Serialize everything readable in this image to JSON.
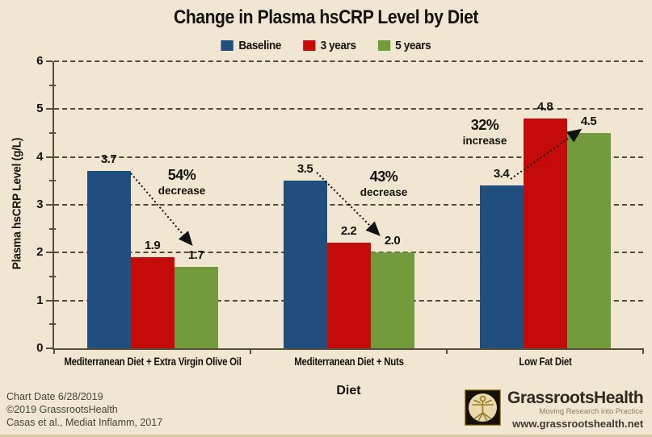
{
  "page": {
    "background": "#F0E6D1"
  },
  "chart_data": {
    "type": "bar",
    "title": "Change in Plasma hsCRP Level by Diet",
    "xlabel": "Diet",
    "ylabel": "Plasma hsCRP Level (g/L)",
    "ylim": [
      0,
      6
    ],
    "ytick_step": 1,
    "grid": "horizontal-dashed",
    "legend_position": "top-center",
    "categories": [
      "Mediterranean Diet + Extra Virgin Olive Oil",
      "Mediterranean Diet + Nuts",
      "Low Fat Diet"
    ],
    "series": [
      {
        "name": "Baseline",
        "color": "#204E7F",
        "values": [
          3.7,
          3.5,
          3.4
        ]
      },
      {
        "name": "3 years",
        "color": "#C50A0A",
        "values": [
          1.9,
          2.2,
          4.8
        ]
      },
      {
        "name": "5 years",
        "color": "#729B3B",
        "values": [
          1.7,
          2.0,
          4.5
        ]
      }
    ],
    "annotations": [
      {
        "category": 0,
        "percent": "54%",
        "word": "decrease",
        "direction": "down"
      },
      {
        "category": 1,
        "percent": "43%",
        "word": "decrease",
        "direction": "down"
      },
      {
        "category": 2,
        "percent": "32%",
        "word": "increase",
        "direction": "up"
      }
    ],
    "value_label_decimals": 1
  },
  "colors": {
    "background": "#F0E6D1",
    "axis": "#55503B",
    "grid": "#514C38",
    "text": "#151310",
    "footer_text": "#49453C"
  },
  "footer": {
    "date": "Chart Date 6/28/2019",
    "copyright": "©2019 GrassrootsHealth",
    "citation": "Casas et al., Mediat Inflamm, 2017"
  },
  "logo": {
    "icon": "vitruvian-man-icon",
    "name": "GrassrootsHealth",
    "tagline": "Moving Research into Practice",
    "url": "www.grassrootshealth.net"
  }
}
